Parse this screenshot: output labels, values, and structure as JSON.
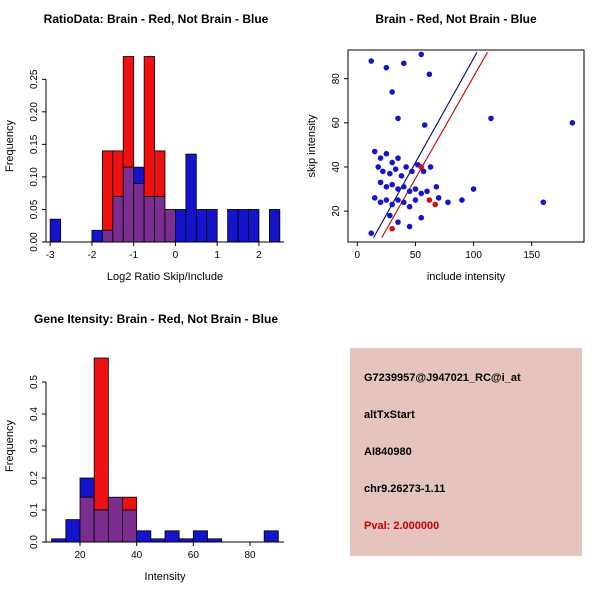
{
  "colors": {
    "background": "#FFFFFF",
    "brain_red": "#EE1111",
    "not_brain_blue": "#1414CC",
    "overlap_purple": "#7A2E8F",
    "info_box_bg": "#E4C4BC",
    "pval_color": "#CC0000"
  },
  "chart_data": [
    {
      "type": "histogram-overlay",
      "title": "RatioData: Brain - Red, Not Brain - Blue",
      "xlabel": "Log2 Ratio Skip/Include",
      "ylabel": "Frequency",
      "xlim": [
        -3.1,
        2.6
      ],
      "ylim": [
        0,
        0.295
      ],
      "xticks": [
        -3,
        -2,
        -1,
        0,
        1,
        2
      ],
      "xtick_labels": [
        "-3",
        "-2",
        "-1",
        "0",
        "1",
        "2"
      ],
      "yticks": [
        0,
        0.05,
        0.1,
        0.15,
        0.2,
        0.25
      ],
      "ytick_labels": [
        "0.00",
        "0.05",
        "0.10",
        "0.15",
        "0.20",
        "0.25"
      ],
      "bin_start": -3,
      "bin_width": 0.25,
      "overlap_color": "#7A2E8F",
      "legend_note": "Brain - Red, Not Brain - Blue",
      "series": [
        {
          "name": "Not Brain",
          "color": "#1414CC",
          "heights": [
            0.035,
            0,
            0,
            0,
            0.018,
            0.018,
            0.07,
            0.115,
            0.115,
            0.07,
            0.07,
            0.05,
            0.05,
            0.135,
            0.05,
            0.05,
            0,
            0.05,
            0.05,
            0.05,
            0,
            0.05
          ]
        },
        {
          "name": "Brain",
          "color": "#EE1111",
          "heights": [
            0,
            0,
            0,
            0,
            0,
            0.14,
            0.14,
            0.285,
            0.09,
            0.285,
            0.14,
            0.05,
            0,
            0,
            0,
            0,
            0,
            0,
            0,
            0,
            0,
            0
          ]
        }
      ]
    },
    {
      "type": "scatter",
      "title": "Brain - Red, Not Brain - Blue",
      "xlabel": "include intensity",
      "ylabel": "skip intensity",
      "xlim": [
        -8,
        195
      ],
      "ylim": [
        6,
        93
      ],
      "xticks": [
        0,
        50,
        100,
        150
      ],
      "xtick_labels": [
        "0",
        "50",
        "100",
        "150"
      ],
      "yticks": [
        20,
        40,
        60,
        80
      ],
      "ytick_labels": [
        "20",
        "40",
        "60",
        "80"
      ],
      "series": [
        {
          "name": "Not Brain",
          "color": "#1414CC",
          "points": [
            [
              12,
              88
            ],
            [
              25,
              85
            ],
            [
              40,
              87
            ],
            [
              55,
              91
            ],
            [
              62,
              82
            ],
            [
              30,
              74
            ],
            [
              35,
              62
            ],
            [
              58,
              59
            ],
            [
              115,
              62
            ],
            [
              185,
              60
            ],
            [
              15,
              47
            ],
            [
              20,
              44
            ],
            [
              25,
              46
            ],
            [
              30,
              42
            ],
            [
              35,
              44
            ],
            [
              18,
              40
            ],
            [
              22,
              38
            ],
            [
              28,
              37
            ],
            [
              33,
              39
            ],
            [
              38,
              36
            ],
            [
              42,
              40
            ],
            [
              47,
              38
            ],
            [
              52,
              41
            ],
            [
              57,
              38
            ],
            [
              63,
              40
            ],
            [
              20,
              33
            ],
            [
              25,
              31
            ],
            [
              30,
              32
            ],
            [
              35,
              30
            ],
            [
              40,
              31
            ],
            [
              45,
              29
            ],
            [
              50,
              30
            ],
            [
              55,
              28
            ],
            [
              60,
              29
            ],
            [
              68,
              31
            ],
            [
              15,
              26
            ],
            [
              20,
              24
            ],
            [
              25,
              25
            ],
            [
              30,
              23
            ],
            [
              35,
              25
            ],
            [
              40,
              24
            ],
            [
              45,
              22
            ],
            [
              50,
              25
            ],
            [
              70,
              26
            ],
            [
              78,
              24
            ],
            [
              90,
              25
            ],
            [
              100,
              30
            ],
            [
              160,
              24
            ],
            [
              28,
              18
            ],
            [
              35,
              15
            ],
            [
              55,
              17
            ],
            [
              12,
              10
            ],
            [
              45,
              13
            ]
          ]
        },
        {
          "name": "Brain",
          "color": "#CC1111",
          "points": [
            [
              55,
              40
            ],
            [
              62,
              25
            ],
            [
              67,
              23
            ],
            [
              30,
              12
            ]
          ]
        }
      ],
      "lines": [
        {
          "name": "not-brain-fit",
          "color": "#00008B",
          "x1": 14,
          "y1": 8,
          "x2": 103,
          "y2": 92
        },
        {
          "name": "brain-fit",
          "color": "#CC0000",
          "x1": 21,
          "y1": 8,
          "x2": 112,
          "y2": 92
        }
      ]
    },
    {
      "type": "histogram-overlay",
      "title": "Gene Itensity: Brain - Red, Not Brain - Blue",
      "xlabel": "Intensity",
      "ylabel": "Frequency",
      "xlim": [
        8,
        92
      ],
      "ylim": [
        0,
        0.6
      ],
      "xticks": [
        20,
        40,
        60,
        80
      ],
      "xtick_labels": [
        "20",
        "40",
        "60",
        "80"
      ],
      "yticks": [
        0,
        0.1,
        0.2,
        0.3,
        0.4,
        0.5
      ],
      "ytick_labels": [
        "0.0",
        "0.1",
        "0.2",
        "0.3",
        "0.4",
        "0.5"
      ],
      "bin_start": 10,
      "bin_width": 5,
      "overlap_color": "#7A2E8F",
      "legend_note": "Brain - Red, Not Brain - Blue",
      "series": [
        {
          "name": "Not Brain",
          "color": "#1414CC",
          "heights": [
            0.01,
            0.07,
            0.2,
            0.1,
            0.14,
            0.1,
            0.035,
            0.01,
            0.035,
            0.01,
            0.035,
            0.01,
            0,
            0,
            0,
            0.035
          ]
        },
        {
          "name": "Brain",
          "color": "#EE1111",
          "heights": [
            0,
            0,
            0.14,
            0.575,
            0.14,
            0.14,
            0,
            0,
            0,
            0,
            0,
            0,
            0,
            0,
            0,
            0
          ]
        }
      ]
    }
  ],
  "info_box": {
    "probe_id": "G7239957@J947021_RC@i_at",
    "event_type": "altTxStart",
    "accession": "AI840980",
    "location": "chr9.26273-1.11",
    "pval": "Pval: 2.000000"
  }
}
